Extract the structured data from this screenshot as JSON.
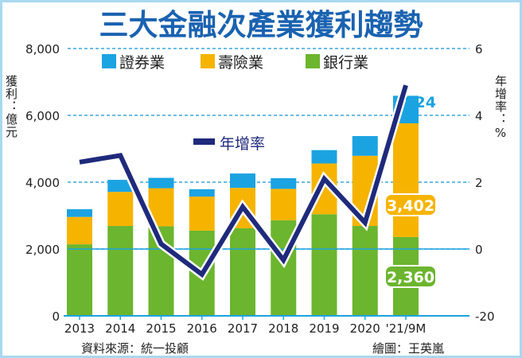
{
  "chart_data": {
    "type": "bar",
    "stacked": true,
    "title": "三大金融次產業獲利趨勢",
    "categories": [
      "2013",
      "2014",
      "2015",
      "2016",
      "2017",
      "2018",
      "2019",
      "2020",
      "'21/9M"
    ],
    "series": [
      {
        "name": "銀行業",
        "color": "#6cb52e",
        "values": [
          2140,
          2690,
          2680,
          2550,
          2620,
          2860,
          3040,
          2690,
          2360
        ]
      },
      {
        "name": "壽險業",
        "color": "#f6b400",
        "values": [
          820,
          1020,
          1140,
          1020,
          1210,
          940,
          1520,
          2100,
          3402
        ]
      },
      {
        "name": "證券業",
        "color": "#1ba3e1",
        "values": [
          230,
          360,
          310,
          220,
          430,
          320,
          400,
          590,
          824
        ]
      }
    ],
    "line_series": {
      "name": "年增率",
      "color": "#1f2a7c",
      "axis": "right",
      "values": [
        26,
        28,
        1.5,
        -7.6,
        12.6,
        -3.3,
        21,
        7.9,
        49
      ]
    },
    "ylabel": "獲利：億元",
    "y2label": "年增率：%",
    "ylim": [
      0,
      8000
    ],
    "yticks": [
      "0",
      "2,000",
      "4,000",
      "6,000",
      "8,000"
    ],
    "y2lim": [
      -20,
      60
    ],
    "y2ticks": [
      "-20",
      "0",
      "2",
      "4",
      "6"
    ],
    "grid": "dashed horizontal",
    "legend": "top",
    "data_labels": {
      "securities_last": "824",
      "insurance_last": "3,402",
      "bank_last": "2,360"
    },
    "source": "資料來源：統一投顧",
    "credit": "繪圖：王英嵐"
  }
}
